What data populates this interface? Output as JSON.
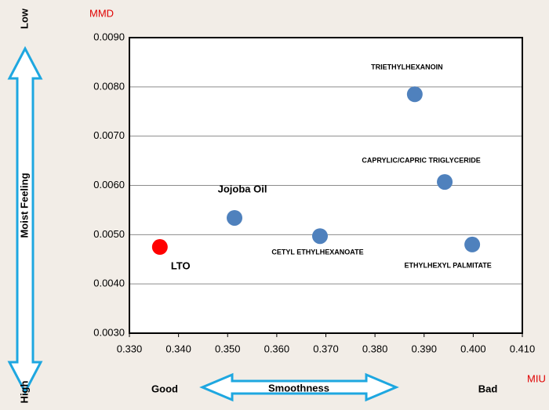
{
  "chart_data": {
    "type": "scatter",
    "y_axis_label": "MMD",
    "x_axis_label": "MIU",
    "y_low_label": "Low",
    "y_high_label": "High",
    "y_arrow_label": "Moist Feeling",
    "x_good_label": "Good",
    "x_bad_label": "Bad",
    "x_arrow_label": "Smoothness",
    "labels": [
      "LTO",
      "Jojoba Oil",
      "CETYL ETHYLHEXANOATE",
      "TRIETHYLHEXANOIN",
      "CAPRYLIC/CAPRIC TRIGLYCERIDE",
      "ETHYLHEXYL PALMITATE"
    ],
    "x": [
      0.3362,
      0.3514,
      0.3688,
      0.3881,
      0.3942,
      0.3998
    ],
    "values": [
      0.00475,
      0.00534,
      0.00497,
      0.00785,
      0.00607,
      0.0048
    ],
    "colors": [
      "#ff0000",
      "#4f81bd",
      "#4f81bd",
      "#4f81bd",
      "#4f81bd",
      "#4f81bd"
    ],
    "xlim": [
      0.33,
      0.41
    ],
    "xticks": [
      {
        "value": 0.33,
        "label": "0.330"
      },
      {
        "value": 0.34,
        "label": "0.340"
      },
      {
        "value": 0.35,
        "label": "0.350"
      },
      {
        "value": 0.36,
        "label": "0.360"
      },
      {
        "value": 0.37,
        "label": "0.370"
      },
      {
        "value": 0.38,
        "label": "0.380"
      },
      {
        "value": 0.39,
        "label": "0.390"
      },
      {
        "value": 0.4,
        "label": "0.400"
      },
      {
        "value": 0.41,
        "label": "0.410"
      }
    ],
    "ylim": [
      0.003,
      0.009
    ],
    "yticks": [
      {
        "value": 0.003,
        "label": "0.0030"
      },
      {
        "value": 0.004,
        "label": "0.0040"
      },
      {
        "value": 0.005,
        "label": "0.0050"
      },
      {
        "value": 0.006,
        "label": "0.0060"
      },
      {
        "value": 0.007,
        "label": "0.0070"
      },
      {
        "value": 0.008,
        "label": "0.0080"
      },
      {
        "value": 0.009,
        "label": "0.0090"
      }
    ],
    "grid": true
  }
}
